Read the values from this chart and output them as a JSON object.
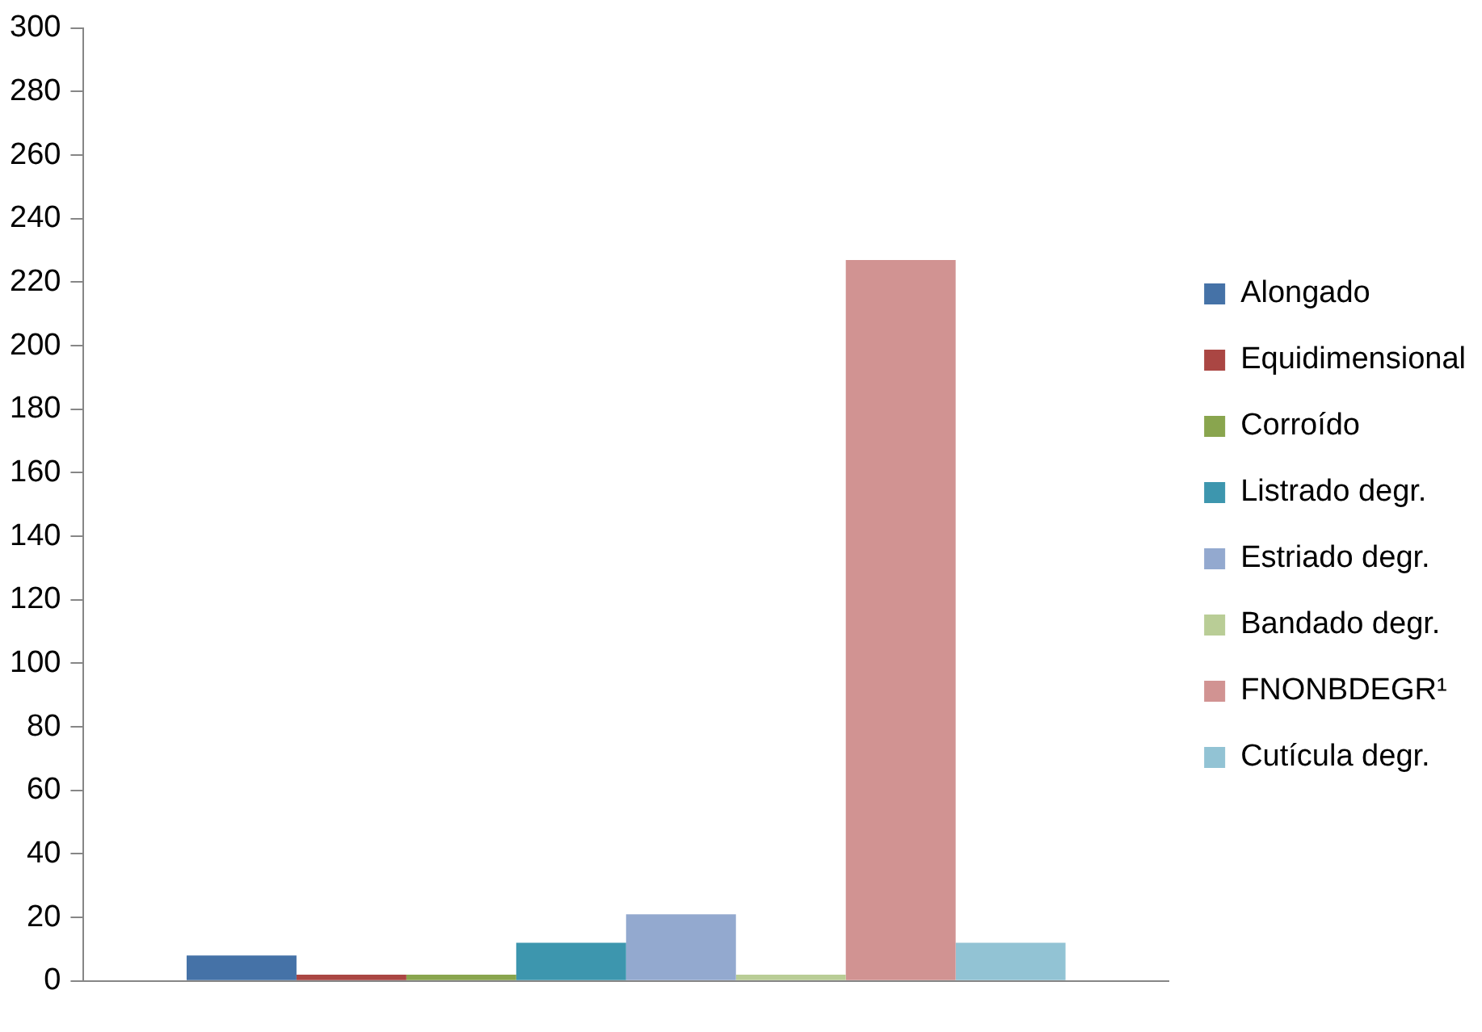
{
  "chart_data": {
    "type": "bar",
    "categories": [
      null
    ],
    "series": [
      {
        "name": "Alongado",
        "color": "#4572a7",
        "values": [
          8
        ]
      },
      {
        "name": "Equidimensional",
        "color": "#aa4643",
        "values": [
          2
        ]
      },
      {
        "name": "Corroído",
        "color": "#89a54e",
        "values": [
          2
        ]
      },
      {
        "name": "Listrado degr.",
        "color": "#3d96ae",
        "values": [
          12
        ]
      },
      {
        "name": "Estriado degr.",
        "color": "#93a9cf",
        "values": [
          21
        ]
      },
      {
        "name": "Bandado degr.",
        "color": "#b9cd96",
        "values": [
          2
        ]
      },
      {
        "name": "FNONBDEGR¹",
        "color": "#d19392",
        "values": [
          227
        ]
      },
      {
        "name": "Cutícula degr.",
        "color": "#92c3d4",
        "values": [
          12
        ]
      }
    ],
    "ylim": [
      0,
      300
    ],
    "yticks": [
      0,
      20,
      40,
      60,
      80,
      100,
      120,
      140,
      160,
      180,
      200,
      220,
      240,
      260,
      280,
      300
    ],
    "grid": false,
    "legend": "right"
  }
}
